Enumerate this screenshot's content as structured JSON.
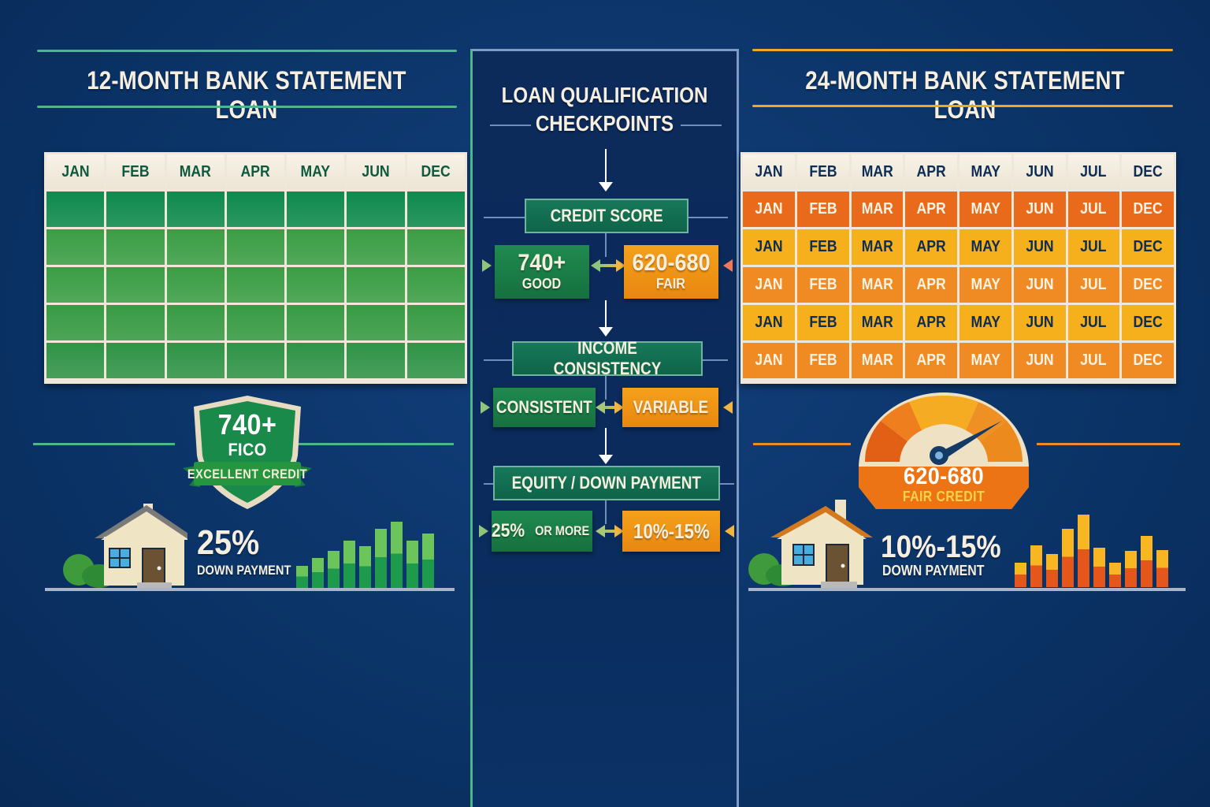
{
  "left_panel": {
    "title": "12-MONTH BANK STATEMENT LOAN",
    "accent_color": "#4fb58a",
    "calendar": {
      "headers": [
        "JAN",
        "FEB",
        "MAR",
        "APR",
        "MAY",
        "JUN",
        "DEC"
      ],
      "rows": 5,
      "header_text_color": "#0f5a3e",
      "row_colors": [
        "#0d8a4e",
        "#3a9e45",
        "#3a9e45",
        "#369b44",
        "#2f9447"
      ]
    },
    "badge": {
      "score": "740+",
      "label": "FICO",
      "ribbon": "EXCELLENT CREDIT",
      "icon": "shield-icon"
    },
    "down_payment": {
      "value": "25%",
      "label": "DOWN PAYMENT",
      "icon": "house-icon"
    },
    "bars": [
      28,
      38,
      46,
      59,
      52,
      74,
      83,
      59,
      68
    ]
  },
  "center_panel": {
    "title_line1": "LOAN QUALIFICATION",
    "title_line2": "CHECKPOINTS",
    "checkpoints": [
      {
        "title": "CREDIT SCORE",
        "left": {
          "big": "740+",
          "small": "GOOD"
        },
        "right": {
          "big": "620-680",
          "small": "FAIR"
        }
      },
      {
        "title": "INCOME CONSISTENCY",
        "left": {
          "text": "CONSISTENT"
        },
        "right": {
          "text": "VARIABLE"
        }
      },
      {
        "title": "EQUITY / DOWN PAYMENT",
        "left": {
          "text_big": "25%",
          "text_small": "OR MORE"
        },
        "right": {
          "text": "10%-15%"
        }
      }
    ]
  },
  "right_panel": {
    "title": "24-MONTH BANK STATEMENT LOAN",
    "accent_color": "#f2a722",
    "calendar": {
      "headers": [
        "JAN",
        "FEB",
        "MAR",
        "APR",
        "MAY",
        "JUN",
        "JUL",
        "DEC"
      ],
      "header_text_color": "#0d2d55",
      "rows": [
        {
          "color": "#ea6a1c",
          "text_color": "#fdf3e3",
          "cells": [
            "JAN",
            "FEB",
            "MAR",
            "APR",
            "MAY",
            "JUN",
            "JUL",
            "DEC"
          ]
        },
        {
          "color": "#f5b01c",
          "text_color": "#0d2d55",
          "cells": [
            "JAN",
            "FEB",
            "MAR",
            "APR",
            "MAY",
            "JUN",
            "JUL",
            "DEC"
          ]
        },
        {
          "color": "#f08a22",
          "text_color": "#fdf3e3",
          "cells": [
            "JAN",
            "FEB",
            "MAR",
            "APR",
            "MAY",
            "JUN",
            "JUL",
            "DEC"
          ]
        },
        {
          "color": "#f5b01c",
          "text_color": "#0d2d55",
          "cells": [
            "JAN",
            "FEB",
            "MAR",
            "APR",
            "MAY",
            "JUN",
            "JUL",
            "DEC"
          ]
        },
        {
          "color": "#f08a22",
          "text_color": "#fdf3e3",
          "cells": [
            "JAN",
            "FEB",
            "MAR",
            "APR",
            "MAY",
            "JUN",
            "JUL",
            "DEC"
          ]
        }
      ]
    },
    "gauge": {
      "score": "620-680",
      "label": "FAIR CREDIT",
      "icon": "gauge-icon"
    },
    "down_payment": {
      "value": "10%-15%",
      "label": "DOWN PAYMENT",
      "icon": "house-icon"
    },
    "bars": [
      30,
      52,
      41,
      72,
      90,
      49,
      30,
      45,
      64,
      46
    ]
  }
}
